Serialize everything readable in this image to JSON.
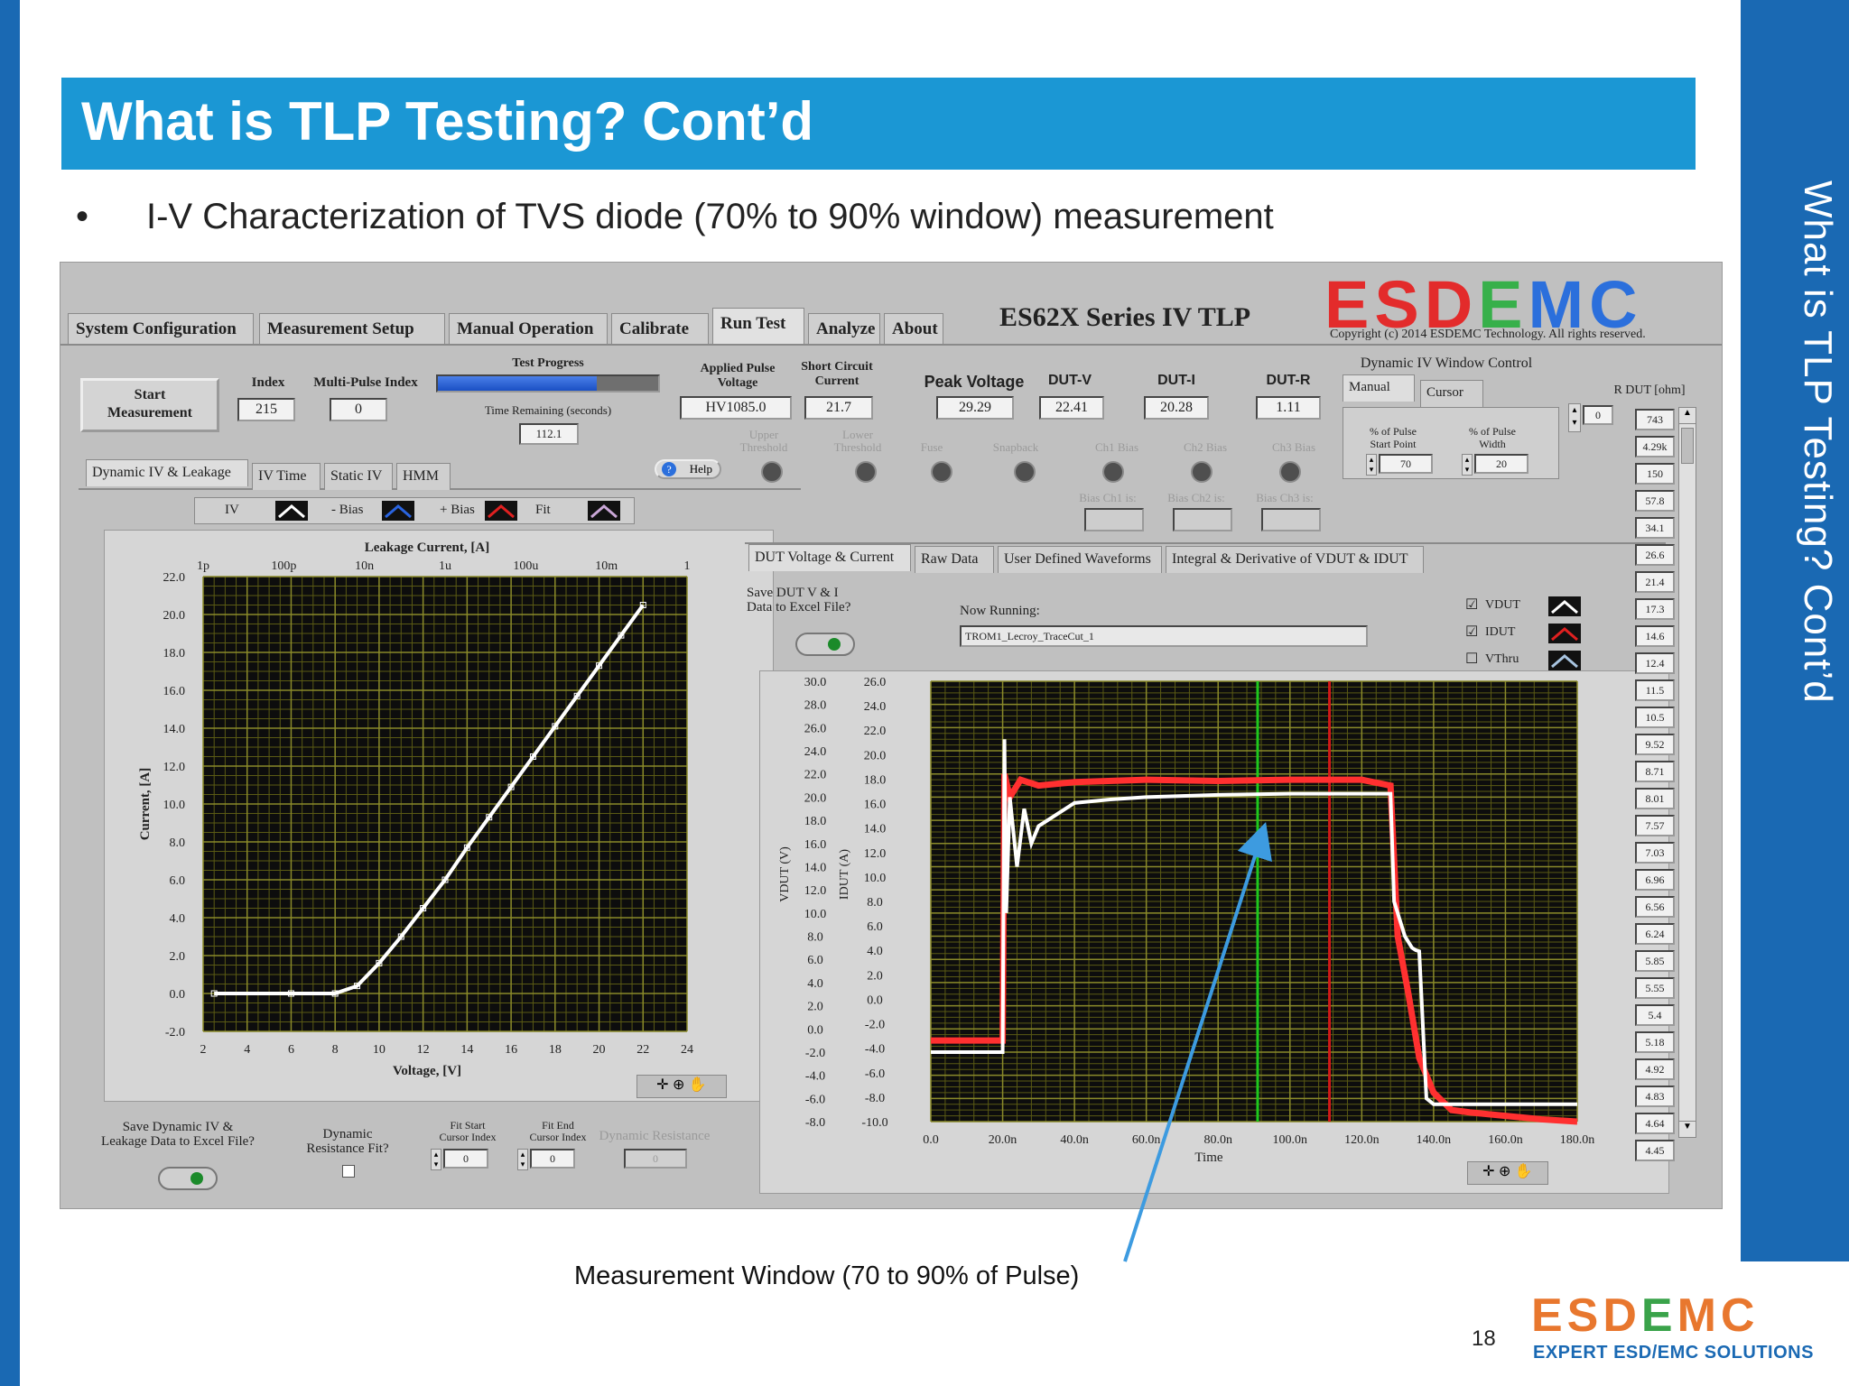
{
  "slide": {
    "title": "What is TLP Testing? Cont’d",
    "side_title": "What is TLP Testing? Cont’d",
    "bullet": "•",
    "bullet_text": "I-V Characterization of TVS diode (70% to 90% window) measurement",
    "callout": "Measurement Window (70 to 90% of Pulse)",
    "page_number": "18",
    "logo": {
      "part1": "ESD",
      "part2": "E",
      "part3": "MC",
      "tagline": "EXPERT ESD/EMC SOLUTIONS"
    },
    "colors": {
      "accent_blue": "#1b97d4",
      "side_blue": "#1a69b3",
      "logo_orange": "#e8772e",
      "logo_green": "#3aa34a"
    }
  },
  "app": {
    "tabs": [
      "System Configuration",
      "Measurement Setup",
      "Manual Operation",
      "Calibrate",
      "Run Test",
      "Analyze",
      "About"
    ],
    "active_tab": "Run Test",
    "product_title": "ES62X Series IV TLP",
    "logo": {
      "red": "ESD",
      "green": "E",
      "blue": "MC"
    },
    "copyright": "Copyright (c) 2014 ESDEMC Technology.  All rights reserved.",
    "start_button": "Start\nMeasurement",
    "index_label": "Index",
    "index_value": "215",
    "multi_label": "Multi-Pulse Index",
    "multi_value": "0",
    "progress_label": "Test Progress",
    "progress_fraction": 0.72,
    "time_label": "Time Remaining (seconds)",
    "time_value": "112.1",
    "applied_label": "Applied Pulse\nVoltage",
    "applied_value": "HV1085.0",
    "short_label": "Short Circuit\nCurrent",
    "short_value": "21.7",
    "peak_label": "Peak Voltage",
    "peak_value": "29.29",
    "dutv_label": "DUT-V",
    "dutv_value": "22.41",
    "duti_label": "DUT-I",
    "duti_value": "20.28",
    "dutr_label": "DUT-R",
    "dutr_value": "1.11",
    "leds": [
      "Upper\nThreshold",
      "Lower\nThreshold",
      "Fuse",
      "Snapback",
      "Ch1 Bias",
      "Ch2 Bias",
      "Ch3 Bias"
    ],
    "bias_labels": [
      "Bias Ch1 is:",
      "Bias Ch2 is:",
      "Bias Ch3 is:"
    ],
    "help": "Help",
    "div_title": "Dynamic IV Window Control",
    "div_tabs": [
      "Manual",
      "Cursor"
    ],
    "start_point_label": "% of Pulse\nStart Point",
    "start_point_value": "70",
    "width_label": "% of Pulse\nWidth",
    "width_value": "20",
    "rdut_label": "R DUT [ohm]",
    "rdut_index": "0",
    "rdut_values": [
      "743",
      "4.29k",
      "150",
      "57.8",
      "34.1",
      "26.6",
      "21.4",
      "17.3",
      "14.6",
      "12.4",
      "11.5",
      "10.5",
      "9.52",
      "8.71",
      "8.01",
      "7.57",
      "7.03",
      "6.96",
      "6.56",
      "6.24",
      "5.85",
      "5.55",
      "5.4",
      "5.18",
      "4.92",
      "4.83",
      "4.64",
      "4.45"
    ],
    "left_tabs": [
      "Dynamic IV & Leakage",
      "IV Time",
      "Static IV",
      "HMM"
    ],
    "legend": [
      {
        "label": "IV",
        "color": "#ffffff"
      },
      {
        "label": "- Bias",
        "color": "#2a64e0"
      },
      {
        "label": "+ Bias",
        "color": "#e02020"
      },
      {
        "label": "Fit",
        "color": "#c9a6d6"
      }
    ],
    "save_iv_label": "Save Dynamic IV &\nLeakage Data to Excel File?",
    "dyn_fit_label": "Dynamic\nResistance Fit?",
    "fit_start_label": "Fit Start\nCursor Index",
    "fit_start_value": "0",
    "fit_end_label": "Fit End\nCursor Index",
    "fit_end_value": "0",
    "dyn_res_label": "Dynamic Resistance",
    "dyn_res_value": "0",
    "right_tabs": [
      "DUT Voltage & Current",
      "Raw Data",
      "User Defined Waveforms",
      "Integral & Derivative of VDUT & IDUT"
    ],
    "save_vi_label": "Save DUT V & I\nData to Excel File?",
    "now_running_label": "Now Running:",
    "now_running_value": "TROM1_Lecroy_TraceCut_1",
    "wave_legend": [
      {
        "label": "VDUT",
        "checked": "☑",
        "color": "#ffffff"
      },
      {
        "label": "IDUT",
        "checked": "☑",
        "color": "#e02020"
      },
      {
        "label": "VThru",
        "checked": "☐",
        "color": "#a8c4e0"
      }
    ]
  },
  "chart_data": [
    {
      "type": "line",
      "title": "Leakage Current, [A]",
      "xlabel": "Voltage, [V]",
      "ylabel": "Current, [A]",
      "xlim": [
        2,
        24
      ],
      "ylim": [
        -2,
        22
      ],
      "x_ticks": [
        "2",
        "4",
        "6",
        "8",
        "10",
        "12",
        "14",
        "16",
        "18",
        "20",
        "22",
        "24"
      ],
      "y_ticks": [
        "22.0",
        "20.0",
        "18.0",
        "16.0",
        "14.0",
        "12.0",
        "10.0",
        "8.0",
        "6.0",
        "4.0",
        "2.0",
        "0.0",
        "-2.0"
      ],
      "top_axis_ticks": [
        "1p",
        "100p",
        "10n",
        "1u",
        "100u",
        "10m",
        "1"
      ],
      "series": [
        {
          "name": "IV",
          "x": [
            2.5,
            6.0,
            8.0,
            9.0,
            10,
            11,
            12,
            13,
            14,
            15,
            16,
            17,
            18,
            19,
            20,
            21,
            22.0
          ],
          "y": [
            0.0,
            0.0,
            0.0,
            0.4,
            1.6,
            3.0,
            4.5,
            6.0,
            7.7,
            9.3,
            10.9,
            12.5,
            14.1,
            15.7,
            17.3,
            18.9,
            20.5
          ]
        }
      ],
      "grid": true
    },
    {
      "type": "line",
      "xlabel": "Time",
      "ylabel": "VDUT (V)",
      "ylabel2": "IDUT (A)",
      "x_ticks": [
        "0.0",
        "20.0n",
        "40.0n",
        "60.0n",
        "80.0n",
        "100.0n",
        "120.0n",
        "140.0n",
        "160.0n",
        "180.0n"
      ],
      "y_ticks": [
        "30.0",
        "28.0",
        "26.0",
        "24.0",
        "22.0",
        "20.0",
        "18.0",
        "16.0",
        "14.0",
        "12.0",
        "10.0",
        "8.0",
        "6.0",
        "4.0",
        "2.0",
        "0.0",
        "-2.0",
        "-4.0",
        "-6.0",
        "-8.0"
      ],
      "y2_ticks": [
        "26.0",
        "24.0",
        "22.0",
        "20.0",
        "18.0",
        "16.0",
        "14.0",
        "12.0",
        "10.0",
        "8.0",
        "6.0",
        "4.0",
        "2.0",
        "0.0",
        "-2.0",
        "-4.0",
        "-6.0",
        "-8.0",
        "-10.0"
      ],
      "xlim": [
        0,
        180
      ],
      "ylim": [
        -8,
        30
      ],
      "series": [
        {
          "name": "VDUT",
          "x": [
            0,
            20,
            20.5,
            21,
            22,
            24,
            26,
            28,
            30,
            35,
            40,
            50,
            60,
            80,
            100,
            120,
            128,
            129,
            130,
            132,
            134,
            135,
            136,
            138,
            140,
            150,
            180
          ],
          "y": [
            -2.0,
            -2.0,
            25.0,
            10.0,
            20.0,
            14.0,
            19.0,
            16.0,
            17.5,
            18.5,
            19.5,
            19.8,
            20.0,
            20.2,
            20.3,
            20.3,
            20.3,
            11.0,
            10.0,
            8.0,
            7.0,
            6.8,
            6.7,
            -6.0,
            -6.5,
            -6.5,
            -6.5
          ]
        },
        {
          "name": "IDUT",
          "x": [
            0,
            20,
            20.5,
            22,
            25,
            30,
            40,
            60,
            80,
            100,
            120,
            128,
            130,
            133,
            136,
            140,
            145,
            150,
            160,
            170,
            180
          ],
          "y": [
            -1.0,
            -1.0,
            22.0,
            20.0,
            21.5,
            21.0,
            21.3,
            21.5,
            21.4,
            21.5,
            21.5,
            21.0,
            8.0,
            3.0,
            -2.5,
            -5.5,
            -7.0,
            -7.2,
            -7.5,
            -7.8,
            -8.0
          ]
        }
      ],
      "measurement_window": [
        91,
        111
      ],
      "grid": true
    }
  ]
}
